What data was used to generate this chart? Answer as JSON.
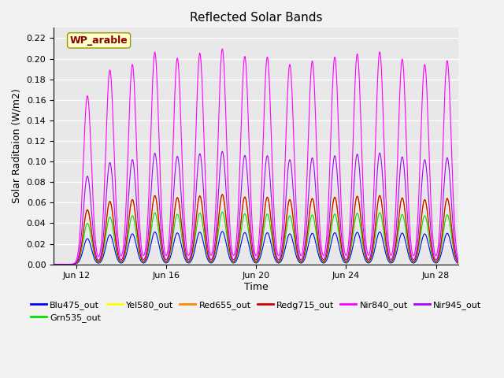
{
  "title": "Reflected Solar Bands",
  "xlabel": "Time",
  "ylabel": "Solar Raditaion (W/m2)",
  "annotation": "WP_arable",
  "ylim": [
    0.0,
    0.23
  ],
  "yticks": [
    0.0,
    0.02,
    0.04,
    0.06,
    0.08,
    0.1,
    0.12,
    0.14,
    0.16,
    0.18,
    0.2,
    0.22
  ],
  "xtick_labels": [
    "Jun 12",
    "Jun 16",
    "Jun 20",
    "Jun 24",
    "Jun 28"
  ],
  "xtick_positions": [
    1,
    5,
    9,
    13,
    17
  ],
  "num_days": 18,
  "fig_bg_color": "#f2f2f2",
  "plot_bg_color": "#e8e8e8",
  "series": [
    {
      "name": "Blu475_out",
      "color": "#0000ff",
      "peak": 0.032,
      "sigma": 0.18
    },
    {
      "name": "Grn535_out",
      "color": "#00dd00",
      "peak": 0.051,
      "sigma": 0.18
    },
    {
      "name": "Yel580_out",
      "color": "#ffff00",
      "peak": 0.068,
      "sigma": 0.18
    },
    {
      "name": "Red655_out",
      "color": "#ff8800",
      "peak": 0.068,
      "sigma": 0.18
    },
    {
      "name": "Redg715_out",
      "color": "#cc0000",
      "peak": 0.068,
      "sigma": 0.18
    },
    {
      "name": "Nir840_out",
      "color": "#ff00ff",
      "peak": 0.21,
      "sigma": 0.18
    },
    {
      "name": "Nir945_out",
      "color": "#aa00ff",
      "peak": 0.11,
      "sigma": 0.18
    }
  ],
  "title_fontsize": 11,
  "axis_label_fontsize": 9,
  "tick_fontsize": 8,
  "legend_fontsize": 8,
  "annotation_fontsize": 9
}
